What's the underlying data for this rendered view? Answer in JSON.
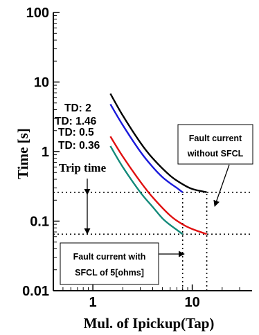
{
  "chart_data": {
    "type": "line",
    "title": "",
    "xlabel": "Mul. of Ipickup(Tap)",
    "ylabel": "Time [s]",
    "xscale": "log",
    "yscale": "log",
    "xlim": [
      0.4,
      40
    ],
    "ylim": [
      0.01,
      100
    ],
    "xticks": [
      {
        "value": 1,
        "label": "1"
      },
      {
        "value": 10,
        "label": "10"
      }
    ],
    "yticks": [
      {
        "value": 0.01,
        "label": "0.01"
      },
      {
        "value": 0.1,
        "label": "0.1"
      },
      {
        "value": 1,
        "label": "1"
      },
      {
        "value": 10,
        "label": "10"
      },
      {
        "value": 100,
        "label": "100"
      }
    ],
    "grid": false,
    "legend": "none",
    "series": [
      {
        "name": "TD: 2",
        "color": "#000000",
        "x": [
          1.5,
          2,
          3,
          4,
          6,
          8,
          10,
          14
        ],
        "y": [
          6.8,
          3.3,
          1.35,
          0.8,
          0.45,
          0.34,
          0.29,
          0.26
        ]
      },
      {
        "name": "TD: 1.46",
        "color": "#1a1adc",
        "x": [
          1.5,
          2,
          3,
          4,
          5,
          6,
          7,
          8
        ],
        "y": [
          4.8,
          2.4,
          1.0,
          0.6,
          0.43,
          0.35,
          0.3,
          0.26
        ]
      },
      {
        "name": "TD: 0.5",
        "color": "#e01010",
        "x": [
          1.5,
          2,
          3,
          4,
          6,
          8,
          10,
          14
        ],
        "y": [
          1.65,
          0.85,
          0.37,
          0.22,
          0.12,
          0.09,
          0.077,
          0.065
        ]
      },
      {
        "name": "TD: 0.36",
        "color": "#138a7a",
        "x": [
          1.5,
          2,
          3,
          4,
          5,
          6,
          7,
          8
        ],
        "y": [
          1.2,
          0.6,
          0.26,
          0.16,
          0.11,
          0.088,
          0.075,
          0.065
        ]
      }
    ],
    "reference_lines": {
      "horizontal": [
        0.26,
        0.065
      ],
      "vertical": [
        8,
        14
      ]
    },
    "annotations": {
      "trip_time": "Trip time",
      "fault_no_sfcl": [
        "Fault current",
        "without SFCL"
      ],
      "fault_with_sfcl": [
        "Fault current with",
        "SFCL of 5[ohms]"
      ]
    }
  }
}
